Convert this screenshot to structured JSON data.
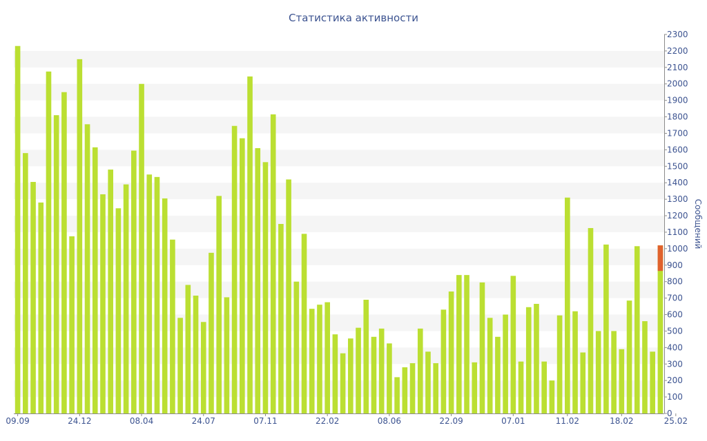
{
  "colors": {
    "bar": "#bbdf32",
    "bar_highlight": "#e0622d",
    "band": "#f5f5f5",
    "axis": "#8a8a8a",
    "text": "#3c5390"
  },
  "chart_data": {
    "type": "bar",
    "title": "Статистика активности",
    "xlabel": "",
    "ylabel": "Сообщений",
    "ylim": [
      0,
      2300
    ],
    "yticks": [
      0,
      100,
      200,
      300,
      400,
      500,
      600,
      700,
      800,
      900,
      1000,
      1100,
      1200,
      1300,
      1400,
      1500,
      1600,
      1700,
      1800,
      1900,
      2000,
      2100,
      2200,
      2300
    ],
    "grid": "alternating horizontal bands",
    "y_axis_position": "right",
    "x_tick_labels": [
      {
        "index": 0,
        "label": "09.09"
      },
      {
        "index": 8,
        "label": "24.12"
      },
      {
        "index": 16,
        "label": "08.04"
      },
      {
        "index": 24,
        "label": "24.07"
      },
      {
        "index": 32,
        "label": "07.11"
      },
      {
        "index": 40,
        "label": "22.02"
      },
      {
        "index": 48,
        "label": "08.06"
      },
      {
        "index": 56,
        "label": "22.09"
      },
      {
        "index": 64,
        "label": "07.01"
      },
      {
        "index": 71,
        "label": "11.02"
      },
      {
        "index": 78,
        "label": "18.02"
      },
      {
        "index": 85,
        "label": "25.02"
      }
    ],
    "values": [
      2230,
      1580,
      1405,
      1280,
      2075,
      1810,
      1950,
      1075,
      2150,
      1755,
      1615,
      1330,
      1480,
      1245,
      1390,
      1595,
      2000,
      1450,
      1435,
      1305,
      1055,
      580,
      780,
      715,
      555,
      975,
      1320,
      705,
      1745,
      1670,
      2045,
      1610,
      1525,
      1815,
      1150,
      1420,
      800,
      1090,
      635,
      660,
      675,
      480,
      365,
      455,
      520,
      690,
      465,
      515,
      425,
      220,
      280,
      305,
      515,
      375,
      305,
      630,
      740,
      840,
      840,
      310,
      795,
      580,
      465,
      600,
      835,
      315,
      645,
      665,
      315,
      200,
      595,
      1310,
      620,
      370,
      1125,
      500,
      1025,
      500,
      390,
      685,
      1015,
      560,
      375,
      1020
    ],
    "last_bar_highlight_value": 155
  }
}
